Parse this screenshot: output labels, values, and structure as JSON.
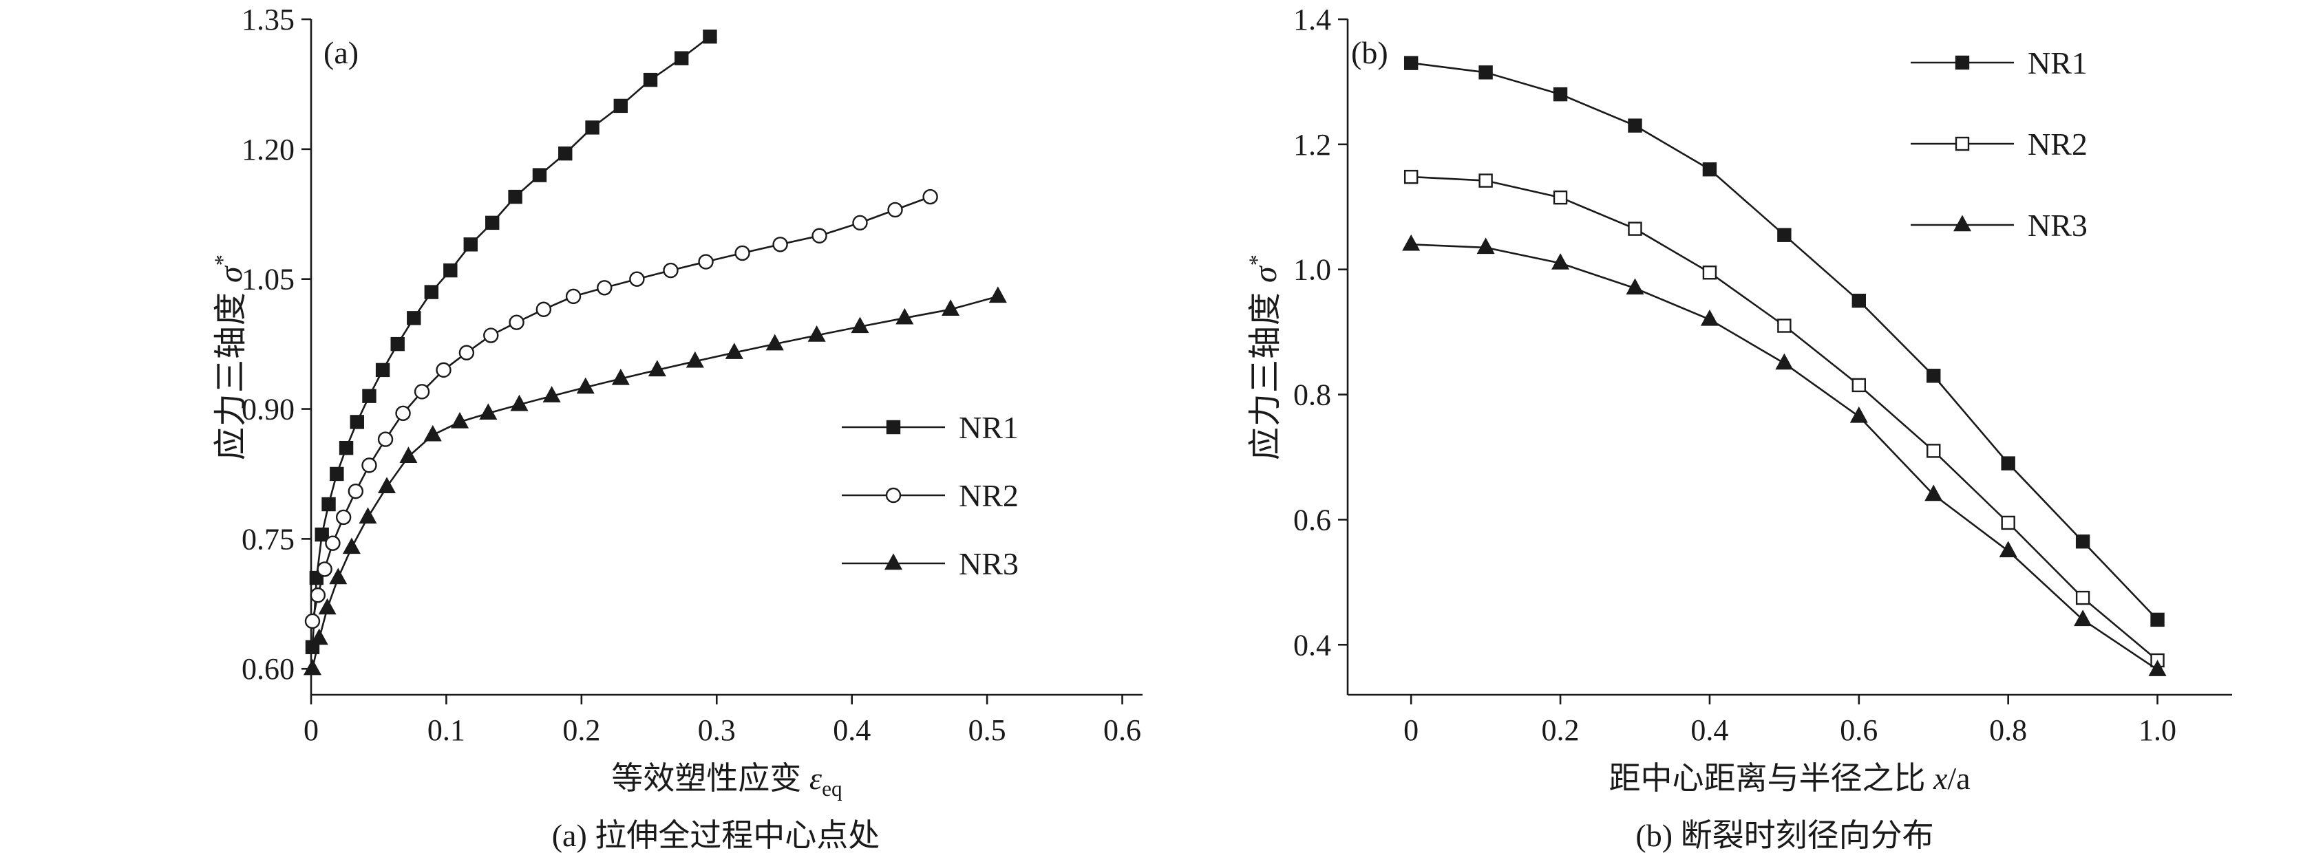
{
  "page": {
    "background": "#ffffff",
    "ink": "#1a1a1a"
  },
  "chart_data": [
    {
      "id": "a",
      "type": "line",
      "panel_label": "(a)",
      "caption": "(a) 拉伸全过程中心点处",
      "xlabel_runs": [
        {
          "t": "等效塑性应变 "
        },
        {
          "t": "ε",
          "i": true
        },
        {
          "t": "eq",
          "sub": true
        }
      ],
      "ylabel_runs": [
        {
          "t": "应力三轴度 "
        },
        {
          "t": "σ",
          "i": true
        },
        {
          "t": "*",
          "sup": true
        }
      ],
      "xlim": [
        0,
        0.615
      ],
      "ylim": [
        0.57,
        1.35
      ],
      "xticks": [
        {
          "v": 0,
          "label": "0"
        },
        {
          "v": 0.1,
          "label": "0.1"
        },
        {
          "v": 0.2,
          "label": "0.2"
        },
        {
          "v": 0.3,
          "label": "0.3"
        },
        {
          "v": 0.4,
          "label": "0.4"
        },
        {
          "v": 0.5,
          "label": "0.5"
        },
        {
          "v": 0.6,
          "label": "0.6"
        }
      ],
      "yticks": [
        {
          "v": 0.6,
          "label": "0.60"
        },
        {
          "v": 0.75,
          "label": "0.75"
        },
        {
          "v": 0.9,
          "label": "0.90"
        },
        {
          "v": 1.05,
          "label": "1.05"
        },
        {
          "v": 1.2,
          "label": "1.20"
        },
        {
          "v": 1.35,
          "label": "1.35"
        }
      ],
      "legend_position": "inside-right-middle",
      "grid": false,
      "series": [
        {
          "name": "NR1",
          "marker": "square-filled",
          "x": [
            0.001,
            0.004,
            0.008,
            0.013,
            0.019,
            0.026,
            0.034,
            0.043,
            0.053,
            0.064,
            0.076,
            0.089,
            0.103,
            0.118,
            0.134,
            0.151,
            0.169,
            0.188,
            0.208,
            0.229,
            0.251,
            0.274,
            0.295
          ],
          "y": [
            0.625,
            0.705,
            0.755,
            0.79,
            0.825,
            0.855,
            0.885,
            0.915,
            0.945,
            0.975,
            1.005,
            1.035,
            1.06,
            1.09,
            1.115,
            1.145,
            1.17,
            1.195,
            1.225,
            1.25,
            1.28,
            1.305,
            1.33
          ]
        },
        {
          "name": "NR2",
          "marker": "circle-open",
          "x": [
            0.001,
            0.005,
            0.01,
            0.016,
            0.024,
            0.033,
            0.043,
            0.055,
            0.068,
            0.082,
            0.098,
            0.115,
            0.133,
            0.152,
            0.172,
            0.194,
            0.217,
            0.241,
            0.266,
            0.292,
            0.319,
            0.347,
            0.376,
            0.406,
            0.432,
            0.458
          ],
          "y": [
            0.655,
            0.685,
            0.715,
            0.745,
            0.775,
            0.805,
            0.835,
            0.865,
            0.895,
            0.92,
            0.945,
            0.965,
            0.985,
            1.0,
            1.015,
            1.03,
            1.04,
            1.05,
            1.06,
            1.07,
            1.08,
            1.09,
            1.1,
            1.115,
            1.13,
            1.145
          ]
        },
        {
          "name": "NR3",
          "marker": "triangle-filled",
          "x": [
            0.001,
            0.006,
            0.012,
            0.02,
            0.03,
            0.042,
            0.056,
            0.072,
            0.09,
            0.11,
            0.131,
            0.154,
            0.178,
            0.203,
            0.229,
            0.256,
            0.284,
            0.313,
            0.343,
            0.374,
            0.406,
            0.439,
            0.473,
            0.508
          ],
          "y": [
            0.6,
            0.635,
            0.67,
            0.705,
            0.74,
            0.775,
            0.81,
            0.845,
            0.87,
            0.885,
            0.895,
            0.905,
            0.915,
            0.925,
            0.935,
            0.945,
            0.955,
            0.965,
            0.975,
            0.985,
            0.995,
            1.005,
            1.015,
            1.03
          ]
        }
      ]
    },
    {
      "id": "b",
      "type": "line",
      "panel_label": "(b)",
      "caption": "(b) 断裂时刻径向分布",
      "xlabel_runs": [
        {
          "t": "距中心距离与半径之比 "
        },
        {
          "t": "x",
          "i": true
        },
        {
          "t": "/a"
        }
      ],
      "ylabel_runs": [
        {
          "t": "应力三轴度 "
        },
        {
          "t": "σ",
          "i": true
        },
        {
          "t": "*",
          "sup": true
        }
      ],
      "xlim": [
        -0.085,
        1.1
      ],
      "ylim": [
        0.32,
        1.4
      ],
      "xticks": [
        {
          "v": 0,
          "label": "0"
        },
        {
          "v": 0.2,
          "label": "0.2"
        },
        {
          "v": 0.4,
          "label": "0.4"
        },
        {
          "v": 0.6,
          "label": "0.6"
        },
        {
          "v": 0.8,
          "label": "0.8"
        },
        {
          "v": 1.0,
          "label": "1.0"
        }
      ],
      "yticks": [
        {
          "v": 0.4,
          "label": "0.4"
        },
        {
          "v": 0.6,
          "label": "0.6"
        },
        {
          "v": 0.8,
          "label": "0.8"
        },
        {
          "v": 1.0,
          "label": "1.0"
        },
        {
          "v": 1.2,
          "label": "1.2"
        },
        {
          "v": 1.4,
          "label": "1.4"
        }
      ],
      "legend_position": "inside-top-right",
      "grid": false,
      "series": [
        {
          "name": "NR1",
          "marker": "square-filled",
          "x": [
            0,
            0.1,
            0.2,
            0.3,
            0.4,
            0.5,
            0.6,
            0.7,
            0.8,
            0.9,
            1.0
          ],
          "y": [
            1.33,
            1.315,
            1.28,
            1.23,
            1.16,
            1.055,
            0.95,
            0.83,
            0.69,
            0.565,
            0.44
          ]
        },
        {
          "name": "NR2",
          "marker": "square-open",
          "x": [
            0,
            0.1,
            0.2,
            0.3,
            0.4,
            0.5,
            0.6,
            0.7,
            0.8,
            0.9,
            1.0
          ],
          "y": [
            1.148,
            1.142,
            1.115,
            1.065,
            0.995,
            0.91,
            0.815,
            0.71,
            0.595,
            0.475,
            0.375
          ]
        },
        {
          "name": "NR3",
          "marker": "triangle-filled",
          "x": [
            0,
            0.1,
            0.2,
            0.3,
            0.4,
            0.5,
            0.6,
            0.7,
            0.8,
            0.9,
            1.0
          ],
          "y": [
            1.04,
            1.035,
            1.01,
            0.97,
            0.92,
            0.85,
            0.765,
            0.64,
            0.55,
            0.44,
            0.36
          ]
        }
      ]
    }
  ]
}
